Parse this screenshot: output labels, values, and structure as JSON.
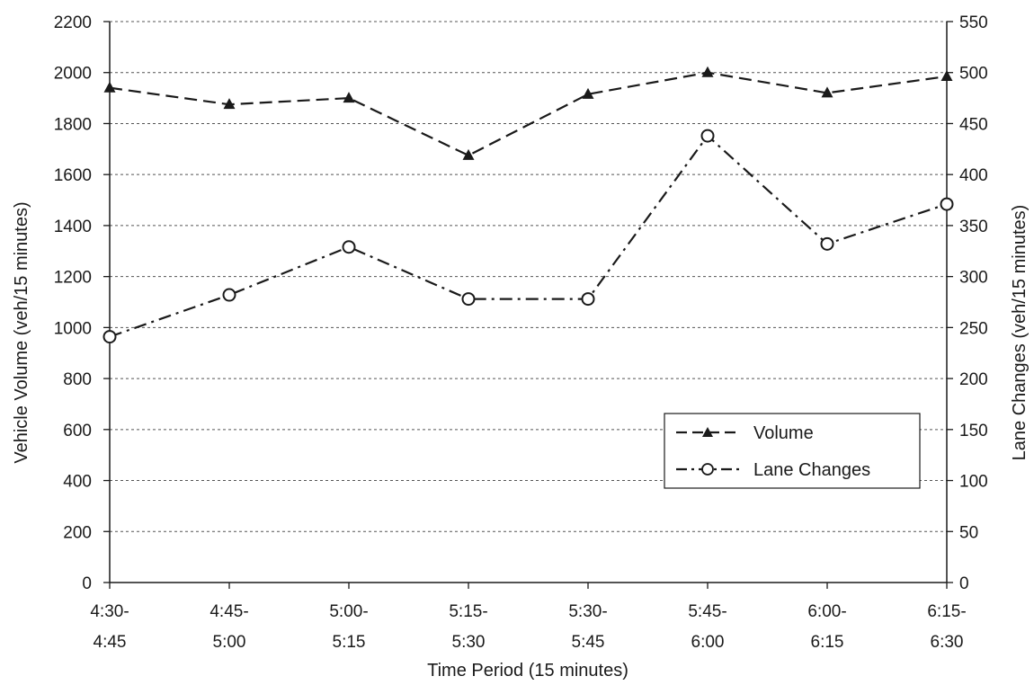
{
  "chart_data": {
    "type": "line",
    "title": "",
    "xlabel": "Time Period (15 minutes)",
    "ylabel": "Vehicle Volume (veh/15 minutes)",
    "y2label": "Lane Changes (veh/15 minutes)",
    "categories": [
      [
        "4:30-",
        "4:45"
      ],
      [
        "4:45-",
        "5:00"
      ],
      [
        "5:00-",
        "5:15"
      ],
      [
        "5:15-",
        "5:30"
      ],
      [
        "5:30-",
        "5:45"
      ],
      [
        "5:45-",
        "6:00"
      ],
      [
        "6:00-",
        "6:15"
      ],
      [
        "6:15-",
        "6:30"
      ]
    ],
    "ylim": [
      0,
      2200
    ],
    "y2lim": [
      0,
      550
    ],
    "yticks": [
      "0",
      "200",
      "400",
      "600",
      "800",
      "1000",
      "1200",
      "1400",
      "1600",
      "1800",
      "2000",
      "2200"
    ],
    "y2ticks": [
      "0",
      "50",
      "100",
      "150",
      "200",
      "250",
      "300",
      "350",
      "400",
      "450",
      "500",
      "550"
    ],
    "grid": true,
    "legend_position": "lower-right",
    "series": [
      {
        "name": "Volume",
        "axis": "left",
        "marker": "triangle",
        "line_style": "dashed",
        "values": [
          1940,
          1875,
          1900,
          1675,
          1915,
          2000,
          1920,
          1985
        ]
      },
      {
        "name": "Lane Changes",
        "axis": "right",
        "marker": "open-circle",
        "line_style": "dash-dot",
        "values": [
          241,
          282,
          329,
          278,
          278,
          438,
          332,
          371
        ]
      }
    ],
    "colors": {
      "line": "#1a1a1a",
      "grid": "#555555",
      "background": "#ffffff"
    }
  }
}
